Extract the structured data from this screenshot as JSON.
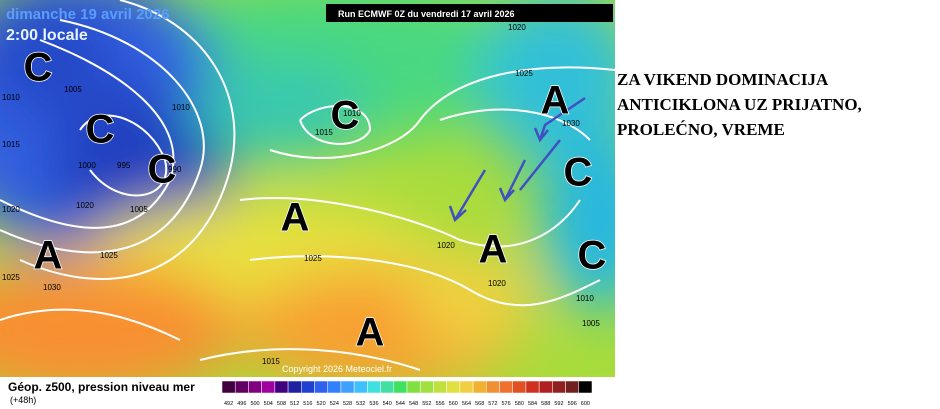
{
  "header": {
    "date": "dimanche 19 avril 2026",
    "time": "2:00 locale",
    "run": "Run ECMWF 0Z du vendredi 17 avril 2026"
  },
  "annotation": [
    "ZA VIKEND DOMINACIJA",
    "ANTICIKLONA UZ PRIJATNO,",
    "PROLEĆNO, VREME"
  ],
  "centers": [
    "C",
    "C",
    "C",
    "C",
    "A",
    "C",
    "A",
    "A",
    "A",
    "C",
    "A"
  ],
  "isobar_labels": [
    "1010",
    "1015",
    "1005",
    "1010",
    "995",
    "1000",
    "990",
    "1005",
    "1020",
    "1025",
    "1030",
    "1025",
    "1020",
    "1015",
    "1010",
    "1020",
    "1025",
    "1030",
    "1025",
    "1020",
    "1020",
    "1010",
    "1005",
    "1015"
  ],
  "copyright": "Copyright 2026 Meteociel.fr",
  "legend": {
    "title": "Géop. z500, pression niveau mer",
    "subtitle": "(+48h)",
    "ticks": [
      "492",
      "496",
      "500",
      "504",
      "508",
      "512",
      "516",
      "520",
      "524",
      "528",
      "532",
      "536",
      "540",
      "544",
      "548",
      "552",
      "556",
      "560",
      "564",
      "568",
      "572",
      "576",
      "580",
      "584",
      "588",
      "592",
      "596",
      "600"
    ]
  }
}
